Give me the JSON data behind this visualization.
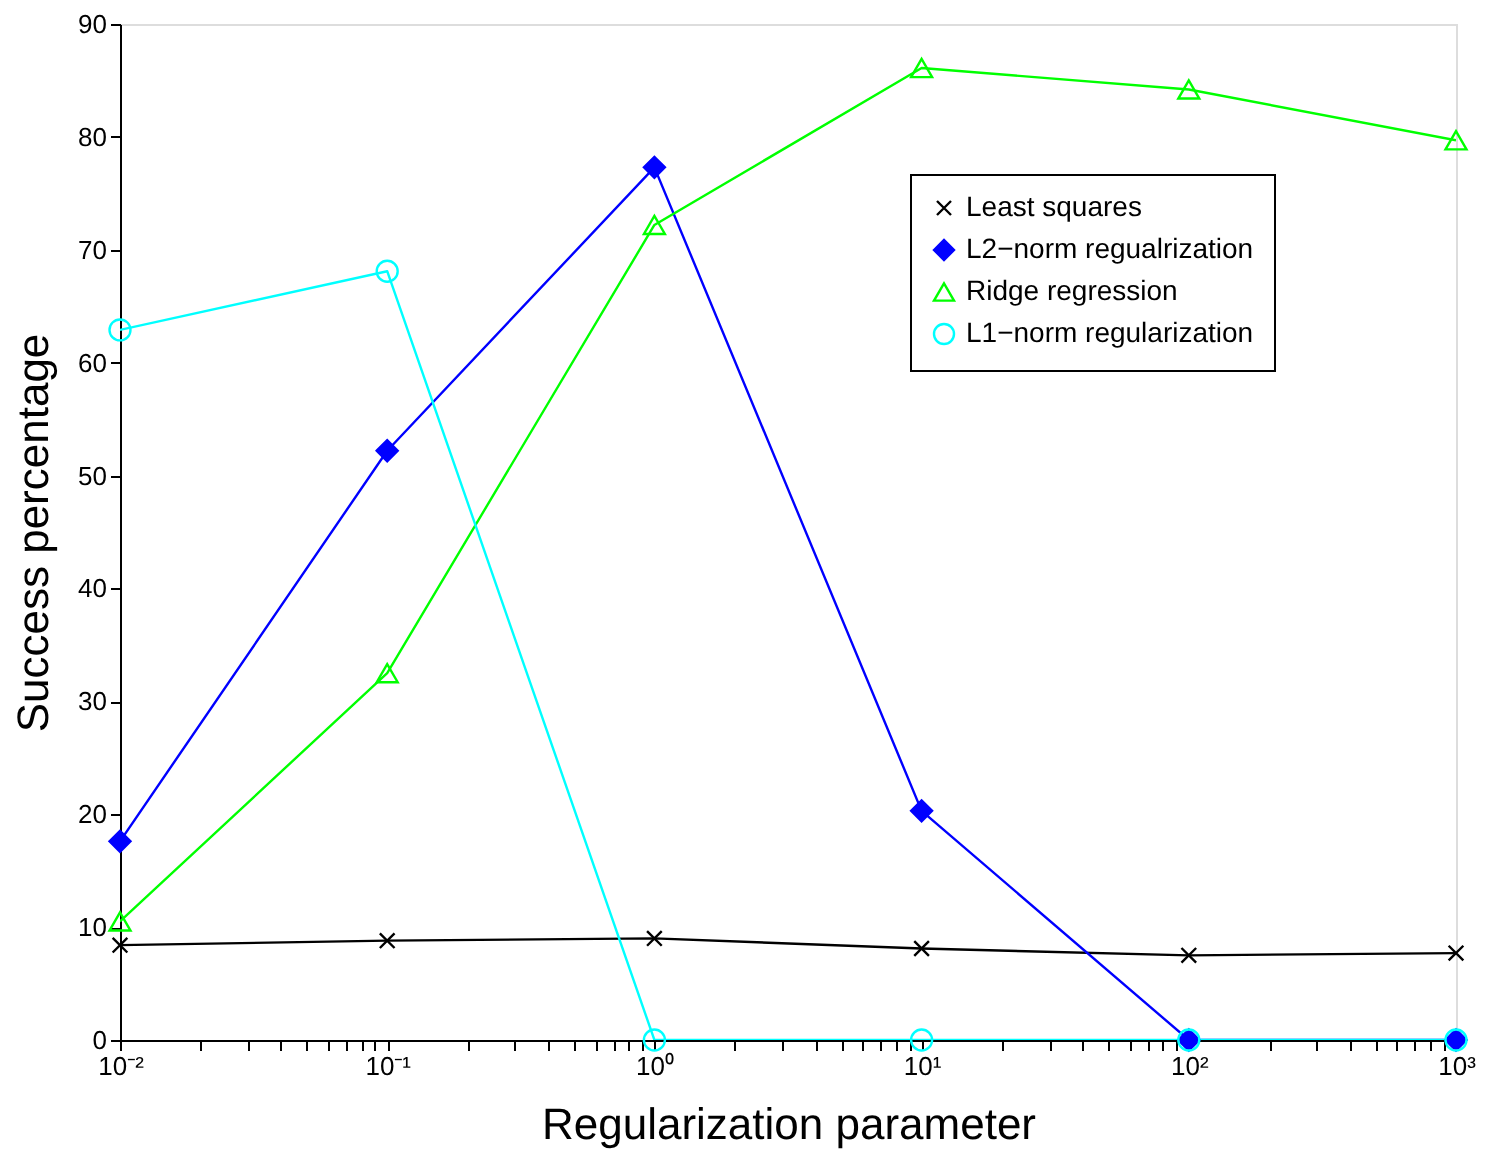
{
  "chart_data": {
    "type": "line",
    "xlabel": "Regularization parameter",
    "ylabel": "Success percentage",
    "x": [
      0.01,
      0.1,
      1,
      10,
      100,
      1000
    ],
    "series": [
      {
        "name": "Least squares",
        "color": "#000000",
        "marker": "cross",
        "values": [
          8.4,
          8.8,
          9.0,
          8.1,
          7.5,
          7.7
        ]
      },
      {
        "name": "L2−norm regualrization",
        "color": "#0000ff",
        "marker": "diamond",
        "values": [
          17.6,
          52.2,
          77.3,
          20.3,
          0,
          0
        ]
      },
      {
        "name": "Ridge regression",
        "color": "#00ff00",
        "marker": "triangle",
        "values": [
          10.5,
          32.5,
          72.2,
          86.1,
          84.2,
          79.7
        ]
      },
      {
        "name": "L1−norm regularization",
        "color": "#00ffff",
        "marker": "circle",
        "values": [
          62.9,
          68.1,
          0,
          0,
          0,
          0
        ]
      }
    ],
    "log": "x",
    "xlim": [
      0.01,
      1000
    ],
    "xticks": [
      {
        "value": 0.01,
        "label": "10⁻²"
      },
      {
        "value": 0.02,
        "label": null
      },
      {
        "value": 0.03,
        "label": null
      },
      {
        "value": 0.04,
        "label": null
      },
      {
        "value": 0.05,
        "label": null
      },
      {
        "value": 0.06,
        "label": null
      },
      {
        "value": 0.07,
        "label": null
      },
      {
        "value": 0.08,
        "label": null
      },
      {
        "value": 0.09,
        "label": null
      },
      {
        "value": 0.1,
        "label": "10⁻¹"
      },
      {
        "value": 0.2,
        "label": null
      },
      {
        "value": 0.3,
        "label": null
      },
      {
        "value": 0.4,
        "label": null
      },
      {
        "value": 0.5,
        "label": null
      },
      {
        "value": 0.6,
        "label": null
      },
      {
        "value": 0.7,
        "label": null
      },
      {
        "value": 0.8,
        "label": null
      },
      {
        "value": 0.9,
        "label": null
      },
      {
        "value": 1,
        "label": "10⁰"
      },
      {
        "value": 2,
        "label": null
      },
      {
        "value": 3,
        "label": null
      },
      {
        "value": 4,
        "label": null
      },
      {
        "value": 5,
        "label": null
      },
      {
        "value": 6,
        "label": null
      },
      {
        "value": 7,
        "label": null
      },
      {
        "value": 8,
        "label": null
      },
      {
        "value": 9,
        "label": null
      },
      {
        "value": 10,
        "label": "10¹"
      },
      {
        "value": 20,
        "label": null
      },
      {
        "value": 30,
        "label": null
      },
      {
        "value": 40,
        "label": null
      },
      {
        "value": 50,
        "label": null
      },
      {
        "value": 60,
        "label": null
      },
      {
        "value": 70,
        "label": null
      },
      {
        "value": 80,
        "label": null
      },
      {
        "value": 90,
        "label": null
      },
      {
        "value": 100,
        "label": "10²"
      },
      {
        "value": 200,
        "label": null
      },
      {
        "value": 300,
        "label": null
      },
      {
        "value": 400,
        "label": null
      },
      {
        "value": 500,
        "label": null
      },
      {
        "value": 600,
        "label": null
      },
      {
        "value": 700,
        "label": null
      },
      {
        "value": 800,
        "label": null
      },
      {
        "value": 900,
        "label": null
      },
      {
        "value": 1000,
        "label": "10³"
      }
    ],
    "ylim": [
      0,
      90
    ],
    "yticks": [
      0,
      10,
      20,
      30,
      40,
      50,
      60,
      70,
      80,
      90
    ],
    "grid": false,
    "legend": "top right",
    "line_style": "solid"
  }
}
